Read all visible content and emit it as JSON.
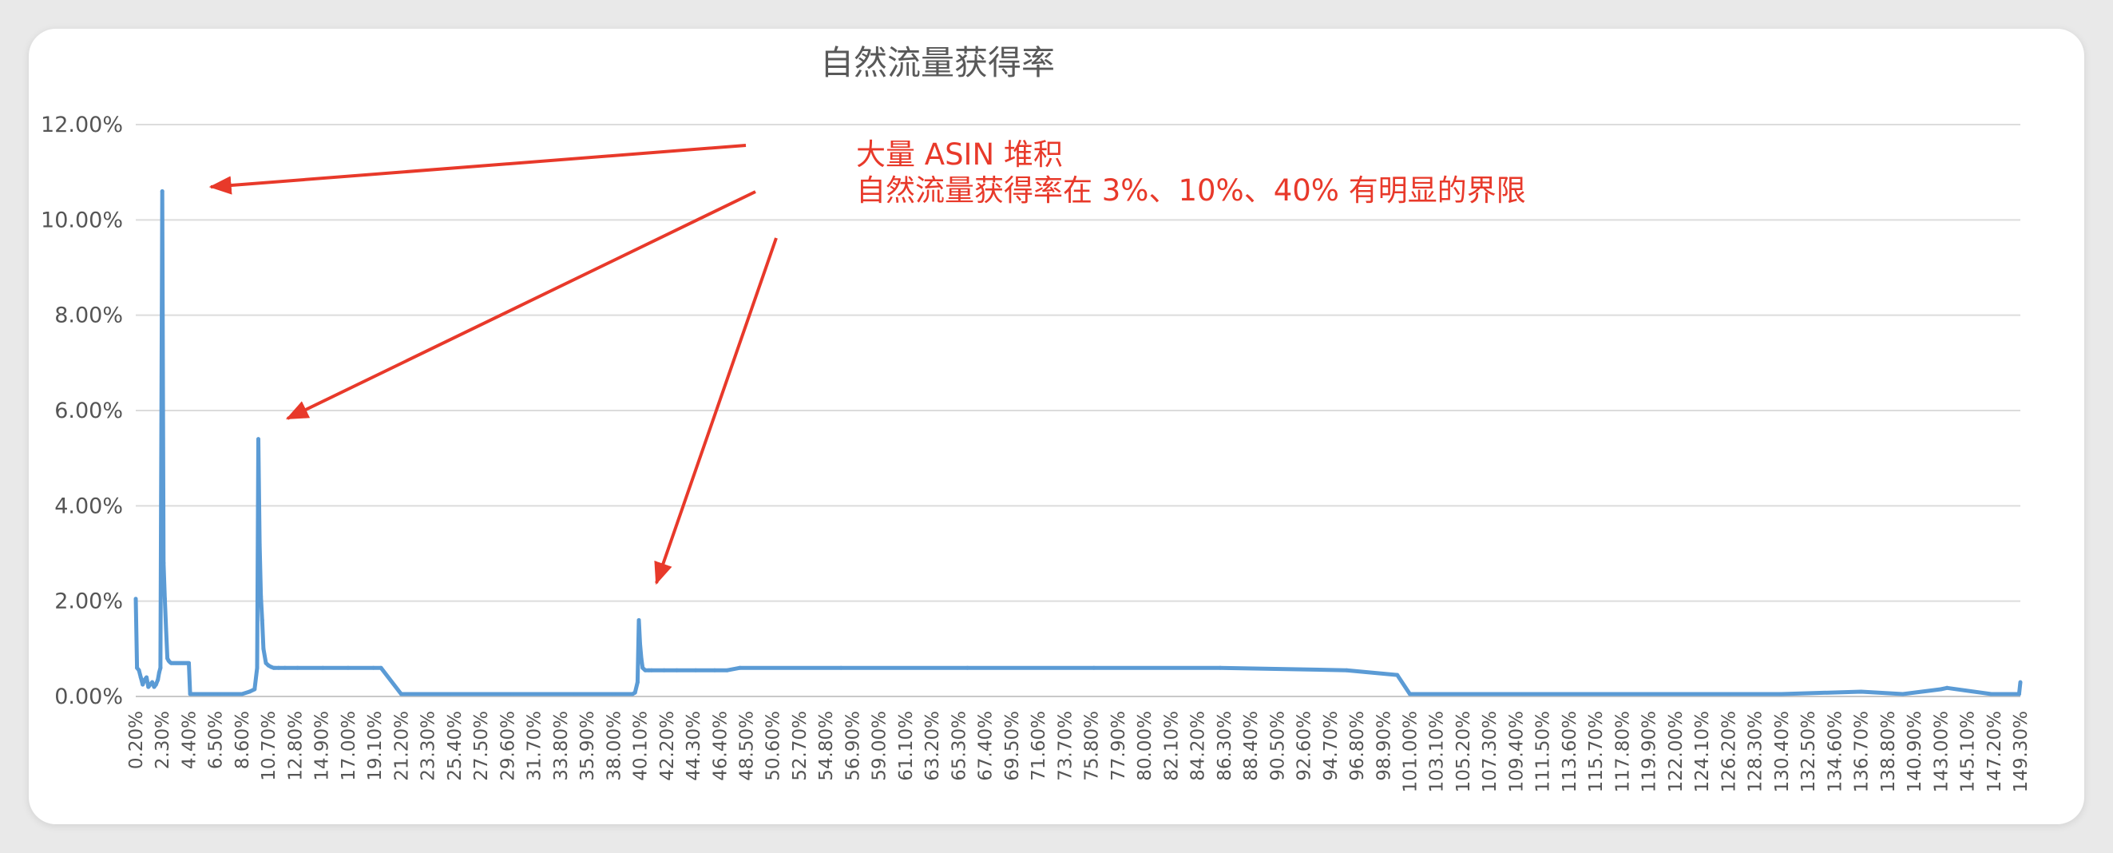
{
  "chart_data": {
    "type": "line",
    "title": "自然流量获得率",
    "xlabel": "",
    "ylabel": "",
    "ylim": [
      0,
      12
    ],
    "y_ticks": [
      "0.00%",
      "2.00%",
      "4.00%",
      "6.00%",
      "8.00%",
      "10.00%",
      "12.00%"
    ],
    "x_tick_labels": [
      "0.20%",
      "2.30%",
      "4.40%",
      "6.50%",
      "8.60%",
      "10.70%",
      "12.80%",
      "14.90%",
      "17.00%",
      "19.10%",
      "21.20%",
      "23.30%",
      "25.40%",
      "27.50%",
      "29.60%",
      "31.70%",
      "33.80%",
      "35.90%",
      "38.00%",
      "40.10%",
      "42.20%",
      "44.30%",
      "46.40%",
      "48.50%",
      "50.60%",
      "52.70%",
      "54.80%",
      "56.90%",
      "59.00%",
      "61.10%",
      "63.20%",
      "65.30%",
      "67.40%",
      "69.50%",
      "71.60%",
      "73.70%",
      "75.80%",
      "77.90%",
      "80.00%",
      "82.10%",
      "84.20%",
      "86.30%",
      "88.40%",
      "90.50%",
      "92.60%",
      "94.70%",
      "96.80%",
      "98.90%",
      "101.00%",
      "103.10%",
      "105.20%",
      "107.30%",
      "109.40%",
      "111.50%",
      "113.60%",
      "115.70%",
      "117.80%",
      "119.90%",
      "122.00%",
      "124.10%",
      "126.20%",
      "128.30%",
      "130.40%",
      "132.50%",
      "134.60%",
      "136.70%",
      "138.80%",
      "140.90%",
      "143.00%",
      "145.10%",
      "147.20%",
      "149.30%"
    ],
    "grid": true,
    "legend": "none",
    "color": "#5b9bd5",
    "series": [
      {
        "x": [
          0.2,
          0.3,
          0.45,
          0.6,
          0.75,
          0.9,
          1.05,
          1.2,
          1.35,
          1.5,
          1.65,
          1.8,
          1.95,
          2.05,
          2.15,
          2.3,
          2.4,
          2.5,
          2.6,
          2.7,
          2.8,
          2.9,
          3.0,
          3.1,
          3.2,
          3.3,
          3.4,
          3.5,
          3.6,
          3.7,
          3.8,
          3.9,
          4.0,
          4.1,
          4.2,
          4.3,
          4.4,
          4.5,
          5.0,
          5.6,
          6.2,
          6.8,
          7.4,
          8.0,
          8.6,
          9.2,
          9.6,
          9.8,
          9.9,
          10.0,
          10.1,
          10.2,
          10.3,
          10.5,
          10.7,
          10.9,
          11.1,
          11.2,
          11.5,
          12.0,
          13.0,
          15.0,
          17.0,
          19.0,
          19.6,
          21.2,
          25.0,
          30.0,
          35.0,
          38.0,
          39.5,
          39.7,
          39.9,
          40.0,
          40.1,
          40.2,
          40.3,
          40.5,
          40.8,
          41.0,
          42.0,
          43.0,
          44.5,
          46.0,
          47.0,
          48.0,
          56.0,
          66.0,
          76.0,
          86.0,
          96.0,
          100.0,
          101.0,
          110.0,
          120.0,
          126.2,
          130.4,
          136.7,
          140.0,
          143.0,
          143.5,
          147.0,
          149.2,
          149.3
        ],
        "y": [
          2.05,
          0.6,
          0.55,
          0.4,
          0.25,
          0.35,
          0.4,
          0.2,
          0.25,
          0.3,
          0.2,
          0.25,
          0.35,
          0.5,
          0.6,
          10.6,
          2.8,
          2.05,
          1.4,
          0.8,
          0.75,
          0.72,
          0.7,
          0.7,
          0.7,
          0.7,
          0.7,
          0.7,
          0.7,
          0.7,
          0.7,
          0.7,
          0.7,
          0.7,
          0.7,
          0.7,
          0.7,
          0.05,
          0.05,
          0.05,
          0.05,
          0.05,
          0.05,
          0.05,
          0.05,
          0.1,
          0.15,
          0.6,
          5.4,
          3.2,
          2.1,
          1.6,
          1.0,
          0.7,
          0.65,
          0.62,
          0.6,
          0.6,
          0.6,
          0.6,
          0.6,
          0.6,
          0.6,
          0.6,
          0.6,
          0.05,
          0.05,
          0.05,
          0.05,
          0.05,
          0.05,
          0.08,
          0.3,
          1.6,
          1.1,
          0.8,
          0.6,
          0.55,
          0.55,
          0.55,
          0.55,
          0.55,
          0.55,
          0.55,
          0.55,
          0.6,
          0.6,
          0.6,
          0.6,
          0.6,
          0.55,
          0.45,
          0.05,
          0.05,
          0.05,
          0.05,
          0.05,
          0.1,
          0.05,
          0.15,
          0.18,
          0.05,
          0.05,
          0.3
        ]
      }
    ]
  },
  "annotation": {
    "line1": "大量 ASIN 堆积",
    "line2": "自然流量获得率在 3%、10%、40% 有明显的界限",
    "color": "#e8392a"
  }
}
